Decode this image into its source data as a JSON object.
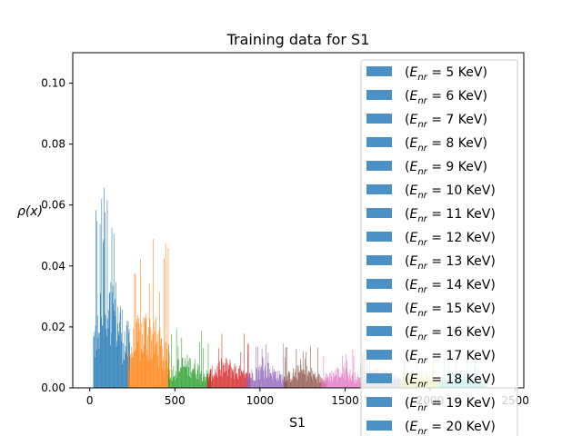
{
  "chart_data": {
    "type": "histogram",
    "title": "Training data for S1",
    "xlabel": "S1",
    "ylabel": "ρ(x)",
    "xlim": [
      -100,
      2550
    ],
    "ylim": [
      0,
      0.11
    ],
    "x_ticks": [
      0,
      500,
      1000,
      1500,
      2000,
      2500
    ],
    "x_tick_labels": [
      "0",
      "500",
      "1000",
      "1500",
      "2000",
      "2500"
    ],
    "y_ticks": [
      0.0,
      0.02,
      0.04,
      0.06,
      0.08,
      0.1
    ],
    "y_tick_labels": [
      "0.00",
      "0.02",
      "0.04",
      "0.06",
      "0.08",
      "0.10"
    ],
    "grid": false,
    "legend_position": "upper-right",
    "legend_swatch_color": "#4c91c6",
    "series": [
      {
        "name": "(E_nr = 5 KeV)",
        "color": "#1f77b4",
        "x_range": [
          20,
          235
        ],
        "peak_density": 0.072
      },
      {
        "name": "(E_nr = 6 KeV)",
        "color": "#ff7f0e",
        "x_range": [
          225,
          470
        ],
        "peak_density": 0.049
      },
      {
        "name": "(E_nr = 7 KeV)",
        "color": "#2ca02c",
        "x_range": [
          460,
          710
        ],
        "peak_density": 0.02
      },
      {
        "name": "(E_nr = 8 KeV)",
        "color": "#d62728",
        "x_range": [
          690,
          940
        ],
        "peak_density": 0.018
      },
      {
        "name": "(E_nr = 9 KeV)",
        "color": "#9467bd",
        "x_range": [
          920,
          1160
        ],
        "peak_density": 0.016
      },
      {
        "name": "(E_nr = 10 KeV)",
        "color": "#8c564b",
        "x_range": [
          1140,
          1390
        ],
        "peak_density": 0.014
      },
      {
        "name": "(E_nr = 11 KeV)",
        "color": "#e377c2",
        "x_range": [
          1360,
          1620
        ],
        "peak_density": 0.013
      },
      {
        "name": "(E_nr = 12 KeV)",
        "color": "#7f7f7f",
        "x_range": [
          1590,
          1850
        ],
        "peak_density": 0.012
      },
      {
        "name": "(E_nr = 13 KeV)",
        "color": "#bcbd22",
        "x_range": [
          1820,
          2080
        ],
        "peak_density": 0.011
      },
      {
        "name": "(E_nr = 14 KeV)",
        "color": "#17becf",
        "x_range": [
          2050,
          2330
        ],
        "peak_density": 0.01
      },
      {
        "name": "(E_nr = 15 KeV)",
        "color": "#1f77b4"
      },
      {
        "name": "(E_nr = 16 KeV)",
        "color": "#ff7f0e"
      },
      {
        "name": "(E_nr = 17 KeV)",
        "color": "#2ca02c"
      },
      {
        "name": "(E_nr = 18 KeV)",
        "color": "#d62728"
      },
      {
        "name": "(E_nr = 19 KeV)",
        "color": "#9467bd"
      },
      {
        "name": "(E_nr = 20 KeV)",
        "color": "#8c564b"
      }
    ],
    "legend_entries": [
      {
        "sub": "nr",
        "value": "5",
        "unit": "KeV"
      },
      {
        "sub": "nr",
        "value": "6",
        "unit": "KeV"
      },
      {
        "sub": "nr",
        "value": "7",
        "unit": "KeV"
      },
      {
        "sub": "nr",
        "value": "8",
        "unit": "KeV"
      },
      {
        "sub": "nr",
        "value": "9",
        "unit": "KeV"
      },
      {
        "sub": "nr",
        "value": "10",
        "unit": "KeV"
      },
      {
        "sub": "nr",
        "value": "11",
        "unit": "KeV"
      },
      {
        "sub": "nr",
        "value": "12",
        "unit": "KeV"
      },
      {
        "sub": "nr",
        "value": "13",
        "unit": "KeV"
      },
      {
        "sub": "nr",
        "value": "14",
        "unit": "KeV"
      },
      {
        "sub": "nr",
        "value": "15",
        "unit": "KeV"
      },
      {
        "sub": "nr",
        "value": "16",
        "unit": "KeV"
      },
      {
        "sub": "nr",
        "value": "17",
        "unit": "KeV"
      },
      {
        "sub": "nr",
        "value": "18",
        "unit": "KeV"
      },
      {
        "sub": "nr",
        "value": "19",
        "unit": "KeV"
      },
      {
        "sub": "nr",
        "value": "20",
        "unit": "KeV"
      }
    ]
  }
}
